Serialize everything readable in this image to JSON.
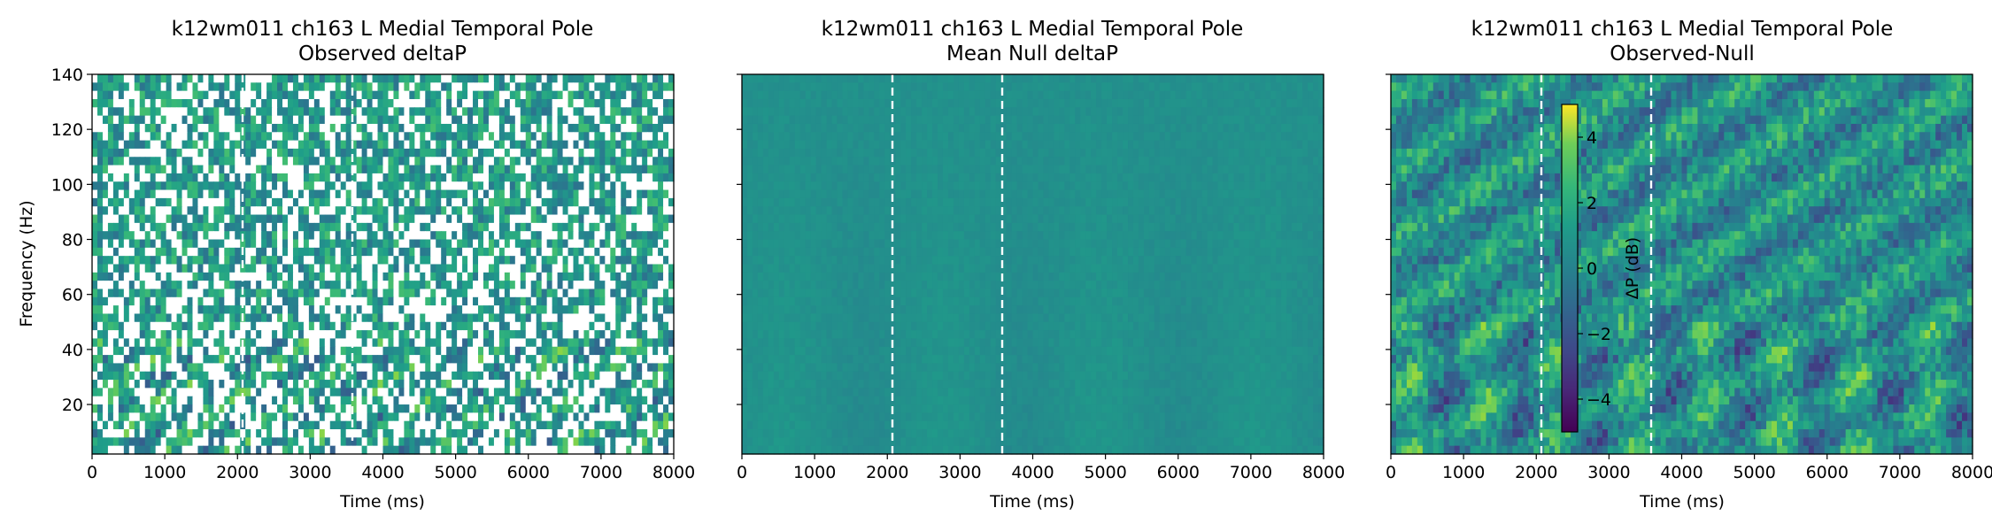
{
  "chart_data": [
    {
      "type": "heatmap",
      "title_line1": "k12wm011 ch163 L Medial Temporal Pole",
      "title_line2": "Observed deltaP",
      "xlabel": "Time (ms)",
      "ylabel": "Frequency (Hz)",
      "xlim": [
        0,
        8000
      ],
      "ylim": [
        2,
        140
      ],
      "xticks": [
        0,
        1000,
        2000,
        3000,
        4000,
        5000,
        6000,
        7000,
        8000
      ],
      "yticks": [
        20,
        40,
        60,
        80,
        100,
        120,
        140
      ],
      "event_lines_ms": [
        2070,
        3580
      ],
      "pattern": "observed",
      "colormap": "viridis",
      "clim": [
        -5,
        5
      ]
    },
    {
      "type": "heatmap",
      "title_line1": "k12wm011 ch163 L Medial Temporal Pole",
      "title_line2": "Mean Null deltaP",
      "xlabel": "Time (ms)",
      "ylabel": "",
      "xlim": [
        0,
        8000
      ],
      "ylim": [
        2,
        140
      ],
      "xticks": [
        0,
        1000,
        2000,
        3000,
        4000,
        5000,
        6000,
        7000,
        8000
      ],
      "yticks": [
        20,
        40,
        60,
        80,
        100,
        120,
        140
      ],
      "event_lines_ms": [
        2070,
        3580
      ],
      "pattern": "null",
      "colormap": "viridis",
      "clim": [
        -5,
        5
      ]
    },
    {
      "type": "heatmap",
      "title_line1": "k12wm011 ch163 L Medial Temporal Pole",
      "title_line2": "Observed-Null",
      "xlabel": "Time (ms)",
      "ylabel": "",
      "xlim": [
        0,
        8000
      ],
      "ylim": [
        2,
        140
      ],
      "xticks": [
        0,
        1000,
        2000,
        3000,
        4000,
        5000,
        6000,
        7000,
        8000
      ],
      "yticks": [
        20,
        40,
        60,
        80,
        100,
        120,
        140
      ],
      "event_lines_ms": [
        2070,
        3580
      ],
      "pattern": "difference",
      "colormap": "viridis",
      "clim": [
        -5,
        5
      ],
      "colorbar": {
        "label": "ΔP (dB)",
        "ticks": [
          -4,
          -2,
          0,
          2,
          4
        ],
        "range": [
          -5,
          5
        ]
      }
    }
  ]
}
